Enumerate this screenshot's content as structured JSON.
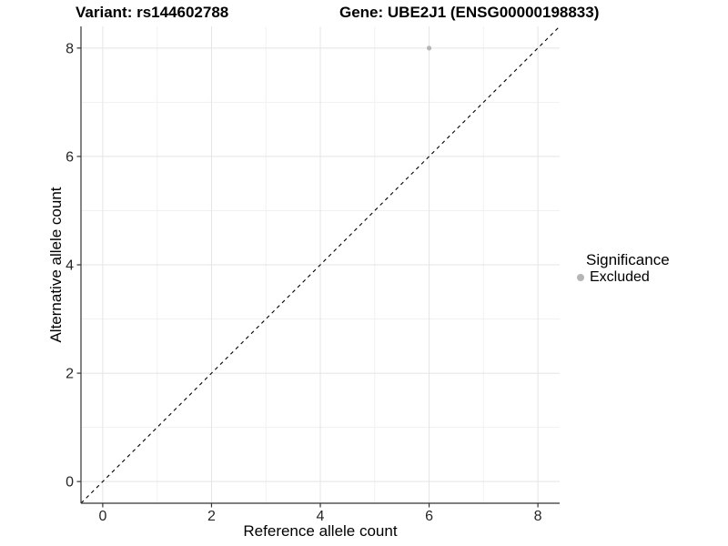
{
  "chart_data": {
    "type": "scatter",
    "titles": {
      "left": "Variant: rs144602788",
      "right": "Gene: UBE2J1 (ENSG00000198833)"
    },
    "xlabel": "Reference allele count",
    "ylabel": "Alternative allele count",
    "xlim": [
      -0.4,
      8.4
    ],
    "ylim": [
      -0.4,
      8.4
    ],
    "xticks": [
      0,
      2,
      4,
      6,
      8
    ],
    "yticks": [
      0,
      2,
      4,
      6,
      8
    ],
    "minor_xticks": [
      1,
      3,
      5,
      7
    ],
    "minor_yticks": [
      1,
      3,
      5,
      7
    ],
    "grid": "major+minor",
    "reference_line": {
      "type": "identity",
      "style": "dashed",
      "from": [
        -0.4,
        -0.4
      ],
      "to": [
        8.4,
        8.4
      ]
    },
    "series": [
      {
        "name": "Excluded",
        "color": "#b5b5b5",
        "points": [
          {
            "x": 6,
            "y": 8
          }
        ]
      }
    ],
    "legend": {
      "title": "Significance",
      "position": "right",
      "entries": [
        {
          "label": "Excluded",
          "color": "#b5b5b5"
        }
      ]
    },
    "colors": {
      "background": "#ffffff",
      "grid_major": "#e4e4e4",
      "grid_minor": "#f1f1f1",
      "axis_line": "#333333",
      "tick_mark": "#333333",
      "tick_text": "#262626",
      "reference_line": "#000000",
      "point": "#b5b5b5"
    }
  }
}
